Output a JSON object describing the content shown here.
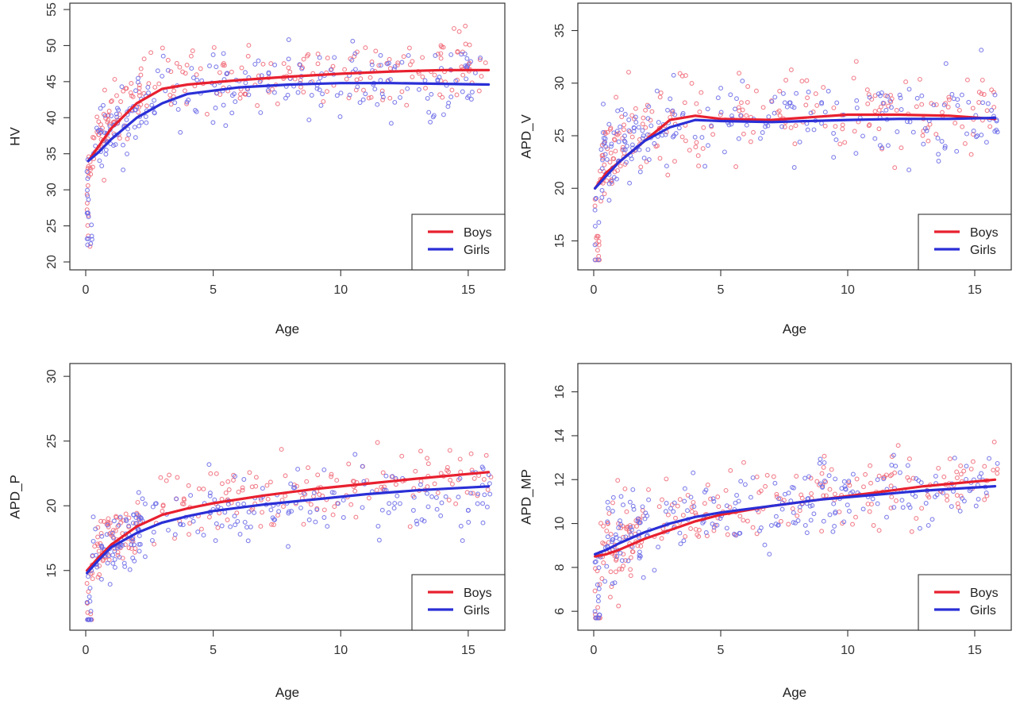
{
  "colors": {
    "boys": "#e8202f",
    "girls": "#2a2fd6",
    "boys_points": "#f06a78",
    "girls_points": "#6a6ae8",
    "frame": "#333333"
  },
  "chart_data": [
    {
      "type": "scatter",
      "panel": "top-left",
      "xlabel": "Age",
      "ylabel": "HV",
      "xlim": [
        0,
        16
      ],
      "ylim": [
        20,
        55
      ],
      "xticks": [
        0,
        5,
        10,
        15
      ],
      "yticks": [
        20,
        25,
        30,
        35,
        40,
        45,
        50,
        55
      ],
      "grid": false,
      "legend_position": "bottom-right",
      "series": [
        {
          "name": "Boys",
          "curve": [
            [
              0.1,
              34
            ],
            [
              0.5,
              36
            ],
            [
              1,
              38.5
            ],
            [
              2,
              42
            ],
            [
              3,
              44
            ],
            [
              4,
              44.6
            ],
            [
              6,
              45.2
            ],
            [
              8,
              45.7
            ],
            [
              10,
              46.1
            ],
            [
              12,
              46.4
            ],
            [
              14,
              46.6
            ],
            [
              15.8,
              46.6
            ]
          ],
          "scatter": {
            "x_start": 0.05,
            "x_end": 15.9,
            "n": 250,
            "y_max_slope": 10.6,
            "y_base": 34,
            "tau": 1.4,
            "y_rise_per_age": 0.13,
            "spread": 3.4
          }
        },
        {
          "name": "Girls",
          "curve": [
            [
              0.1,
              34
            ],
            [
              0.5,
              35.2
            ],
            [
              1,
              37
            ],
            [
              2,
              40
            ],
            [
              3,
              42
            ],
            [
              4,
              43.3
            ],
            [
              6,
              44.2
            ],
            [
              8,
              44.6
            ],
            [
              10,
              44.8
            ],
            [
              12,
              44.8
            ],
            [
              14,
              44.7
            ],
            [
              15.8,
              44.6
            ]
          ],
          "scatter": {
            "x_start": 0.05,
            "x_end": 15.9,
            "n": 250,
            "y_max_slope": 10.6,
            "y_base": 34,
            "tau": 1.8,
            "y_rise_per_age": 0.03,
            "spread": 3.3
          }
        }
      ]
    },
    {
      "type": "scatter",
      "panel": "top-right",
      "xlabel": "Age",
      "ylabel": "APD_V",
      "xlim": [
        0,
        16
      ],
      "ylim": [
        13,
        37
      ],
      "xticks": [
        0,
        5,
        10,
        15
      ],
      "yticks": [
        15,
        20,
        25,
        30,
        35
      ],
      "grid": false,
      "legend_position": "bottom-right",
      "series": [
        {
          "name": "Boys",
          "curve": [
            [
              0.05,
              20
            ],
            [
              0.5,
              21.5
            ],
            [
              1,
              22.5
            ],
            [
              2,
              24.5
            ],
            [
              3,
              26.5
            ],
            [
              4,
              26.9
            ],
            [
              5,
              26.6
            ],
            [
              7,
              26.5
            ],
            [
              10,
              27
            ],
            [
              12,
              27
            ],
            [
              14,
              26.9
            ],
            [
              15.8,
              26.6
            ]
          ],
          "scatter": {
            "x_start": 0.05,
            "x_end": 15.9,
            "n": 230,
            "y_max_slope": 6.8,
            "y_base": 20,
            "tau": 1.2,
            "y_rise_per_age": 0.02,
            "spread": 2.6
          }
        },
        {
          "name": "Girls",
          "curve": [
            [
              0.05,
              20
            ],
            [
              0.5,
              21.2
            ],
            [
              1,
              22.5
            ],
            [
              2,
              24.5
            ],
            [
              3,
              25.8
            ],
            [
              4,
              26.5
            ],
            [
              5,
              26.4
            ],
            [
              7,
              26.3
            ],
            [
              10,
              26.5
            ],
            [
              12,
              26.6
            ],
            [
              14,
              26.6
            ],
            [
              15.8,
              26.7
            ]
          ],
          "scatter": {
            "x_start": 0.05,
            "x_end": 15.9,
            "n": 230,
            "y_max_slope": 6.6,
            "y_base": 20,
            "tau": 1.3,
            "y_rise_per_age": 0.01,
            "spread": 2.6
          }
        }
      ]
    },
    {
      "type": "scatter",
      "panel": "bottom-left",
      "xlabel": "Age",
      "ylabel": "APD_P",
      "xlim": [
        0,
        16
      ],
      "ylim": [
        11,
        30.5
      ],
      "xticks": [
        0,
        5,
        10,
        15
      ],
      "yticks": [
        15,
        20,
        25,
        30
      ],
      "grid": false,
      "legend_position": "bottom-right",
      "series": [
        {
          "name": "Boys",
          "curve": [
            [
              0.05,
              15
            ],
            [
              0.5,
              16
            ],
            [
              1,
              17
            ],
            [
              2,
              18.4
            ],
            [
              3,
              19.3
            ],
            [
              4,
              19.8
            ],
            [
              5,
              20.2
            ],
            [
              7,
              20.8
            ],
            [
              9,
              21.3
            ],
            [
              11,
              21.7
            ],
            [
              13,
              22.1
            ],
            [
              15.8,
              22.6
            ]
          ],
          "scatter": {
            "x_start": 0.05,
            "x_end": 15.9,
            "n": 240,
            "y_max_slope": 4.6,
            "y_base": 15,
            "tau": 1.4,
            "y_rise_per_age": 0.16,
            "spread": 1.7
          }
        },
        {
          "name": "Girls",
          "curve": [
            [
              0.05,
              14.8
            ],
            [
              0.5,
              15.8
            ],
            [
              1,
              16.8
            ],
            [
              2,
              17.9
            ],
            [
              3,
              18.7
            ],
            [
              4,
              19.2
            ],
            [
              5,
              19.6
            ],
            [
              7,
              20.1
            ],
            [
              9,
              20.5
            ],
            [
              11,
              20.9
            ],
            [
              13,
              21.2
            ],
            [
              15.8,
              21.5
            ]
          ],
          "scatter": {
            "x_start": 0.05,
            "x_end": 15.9,
            "n": 240,
            "y_max_slope": 4.4,
            "y_base": 14.8,
            "tau": 1.5,
            "y_rise_per_age": 0.11,
            "spread": 1.7
          }
        }
      ]
    },
    {
      "type": "scatter",
      "panel": "bottom-right",
      "xlabel": "Age",
      "ylabel": "APD_MP",
      "xlim": [
        0,
        16
      ],
      "ylim": [
        5.5,
        17
      ],
      "xticks": [
        0,
        5,
        10,
        15
      ],
      "yticks": [
        6,
        8,
        10,
        12,
        14,
        16
      ],
      "grid": false,
      "legend_position": "bottom-right",
      "series": [
        {
          "name": "Boys",
          "curve": [
            [
              0.05,
              8.5
            ],
            [
              0.5,
              8.6
            ],
            [
              1,
              8.8
            ],
            [
              2,
              9.3
            ],
            [
              3,
              9.7
            ],
            [
              4,
              10.1
            ],
            [
              5,
              10.4
            ],
            [
              7,
              10.8
            ],
            [
              9,
              11.1
            ],
            [
              11,
              11.4
            ],
            [
              13,
              11.7
            ],
            [
              15.8,
              12
            ]
          ],
          "scatter": {
            "x_start": 0.05,
            "x_end": 15.9,
            "n": 250,
            "y_max_slope": 1.9,
            "y_base": 8.5,
            "tau": 2.5,
            "y_rise_per_age": 0.11,
            "spread": 1.1
          }
        },
        {
          "name": "Girls",
          "curve": [
            [
              0.05,
              8.6
            ],
            [
              0.5,
              8.8
            ],
            [
              1,
              9.1
            ],
            [
              2,
              9.6
            ],
            [
              3,
              10
            ],
            [
              4,
              10.3
            ],
            [
              5,
              10.5
            ],
            [
              7,
              10.8
            ],
            [
              9,
              11.1
            ],
            [
              11,
              11.3
            ],
            [
              13,
              11.5
            ],
            [
              15.8,
              11.7
            ]
          ],
          "scatter": {
            "x_start": 0.05,
            "x_end": 15.9,
            "n": 250,
            "y_max_slope": 1.7,
            "y_base": 8.6,
            "tau": 2.5,
            "y_rise_per_age": 0.09,
            "spread": 1.1
          }
        }
      ]
    }
  ]
}
